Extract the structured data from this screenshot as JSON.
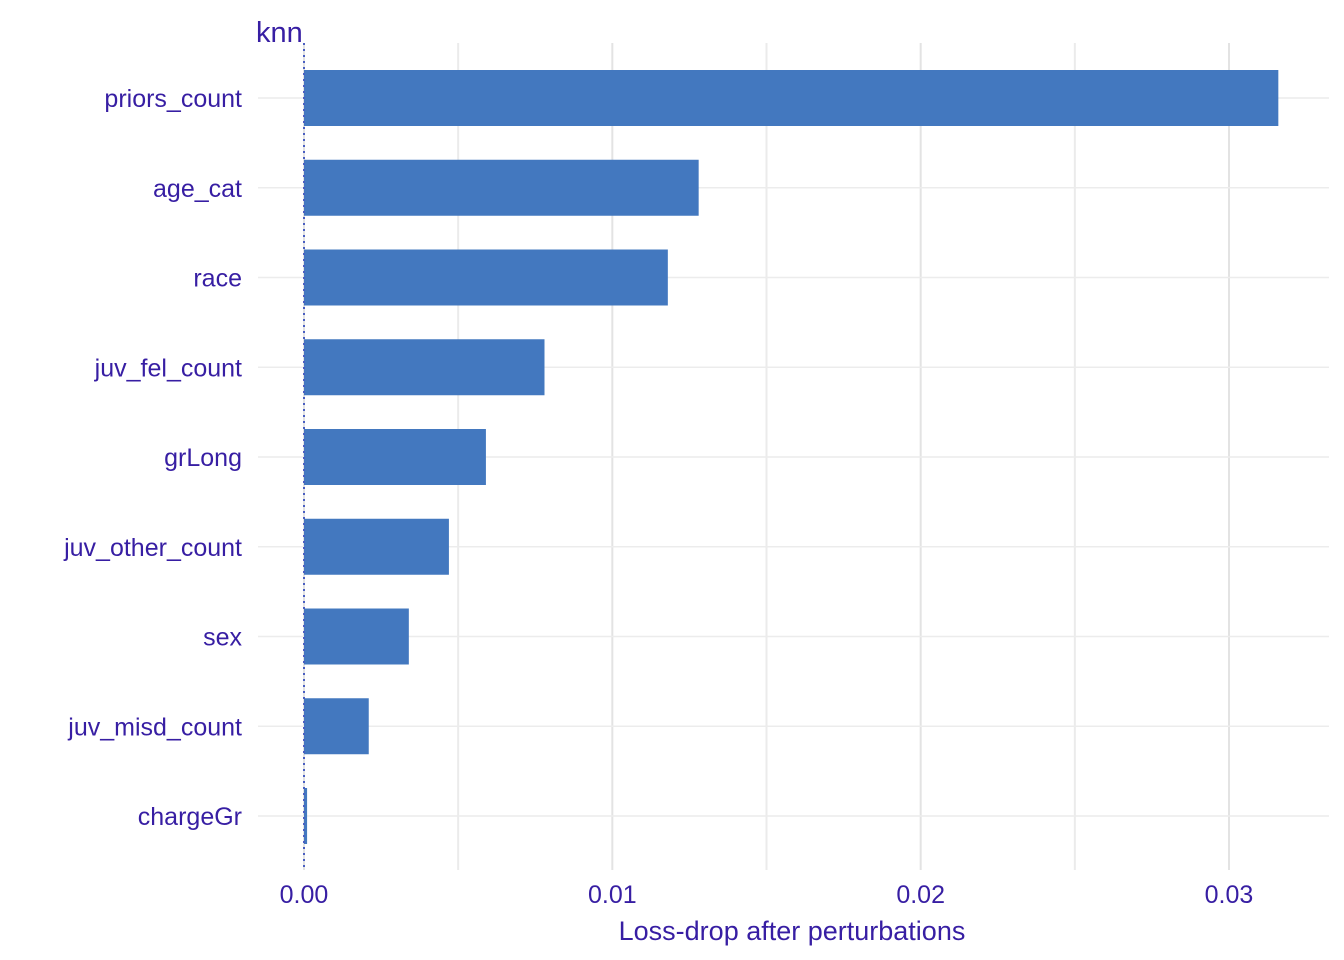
{
  "chart_data": {
    "type": "bar",
    "orientation": "horizontal",
    "facet_title": "knn",
    "xlabel": "Loss-drop after perturbations",
    "ylabel": "",
    "xlim": [
      -0.0012,
      0.0331
    ],
    "x_ticks": [
      0.0,
      0.01,
      0.02,
      0.03
    ],
    "x_tick_labels": [
      "0.00",
      "0.01",
      "0.02",
      "0.03"
    ],
    "grid": true,
    "legend": "none",
    "baseline": 0,
    "categories": [
      "priors_count",
      "age_cat",
      "race",
      "juv_fel_count",
      "grLong",
      "juv_other_count",
      "sex",
      "juv_misd_count",
      "chargeGr"
    ],
    "values": [
      0.0316,
      0.0128,
      0.0118,
      0.0078,
      0.0059,
      0.0047,
      0.0034,
      0.0021,
      0.0001
    ]
  },
  "colors": {
    "bar": "#4378bf",
    "text": "#371ea3",
    "grid": "#e6e6e6",
    "baseline": "#4a5fc1"
  }
}
